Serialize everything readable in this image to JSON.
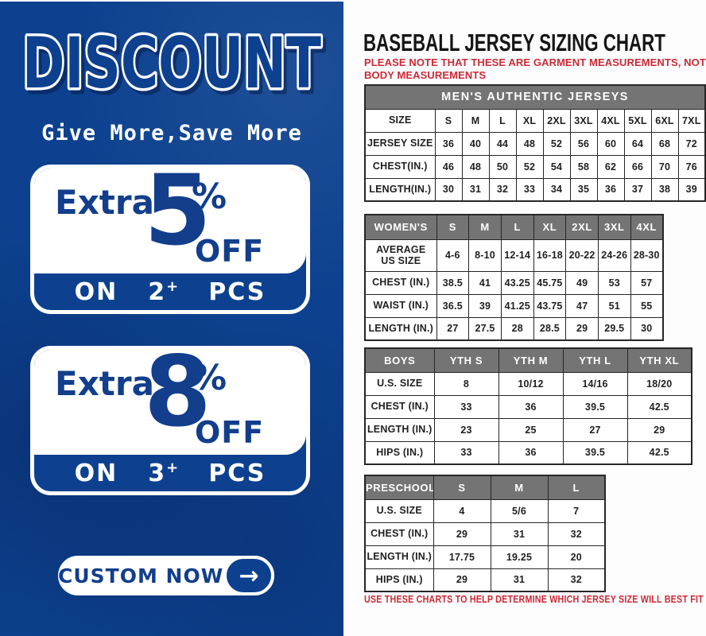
{
  "colors": {
    "panel_blue": "#0d418f",
    "navy_text": "#123e8c",
    "brand_red": "#cc2936",
    "header_gray": "#747474"
  },
  "left_panel": {
    "title": "DISCOUNT",
    "subtitle": "Give More,Save More",
    "offers": [
      {
        "prefix": "Extra",
        "value": "5",
        "percent": "%",
        "off": "OFF",
        "on": "ON",
        "qty": "2",
        "plus": "+",
        "pcs": "PCS"
      },
      {
        "prefix": "Extra",
        "value": "8",
        "percent": "%",
        "off": "OFF",
        "on": "ON",
        "qty": "3",
        "plus": "+",
        "pcs": "PCS"
      }
    ],
    "cta": {
      "label": "CUSTOM NOW",
      "arrow": "→"
    }
  },
  "sizing": {
    "title": "BASEBALL JERSEY SIZING CHART",
    "note_top": "PLEASE NOTE THAT THESE ARE GARMENT MEASUREMENTS, NOT BODY MEASUREMENTS",
    "note_bottom": "USE THESE CHARTS TO HELP DETERMINE WHICH JERSEY SIZE WILL BEST FIT YOU.",
    "tables": {
      "men": {
        "header_merged": "MEN'S AUTHENTIC JERSEYS",
        "rows": [
          [
            "SIZE",
            "S",
            "M",
            "L",
            "XL",
            "2XL",
            "3XL",
            "4XL",
            "5XL",
            "6XL",
            "7XL"
          ],
          [
            "JERSEY SIZE",
            "36",
            "40",
            "44",
            "48",
            "52",
            "56",
            "60",
            "64",
            "68",
            "72"
          ],
          [
            "CHEST(IN.)",
            "46",
            "48",
            "50",
            "52",
            "54",
            "58",
            "62",
            "66",
            "70",
            "76"
          ],
          [
            "LENGTH(IN.)",
            "30",
            "31",
            "32",
            "33",
            "34",
            "35",
            "36",
            "37",
            "38",
            "39"
          ]
        ]
      },
      "women": {
        "header": [
          "WOMEN'S",
          "S",
          "M",
          "L",
          "XL",
          "2XL",
          "3XL",
          "4XL"
        ],
        "rows": [
          [
            "AVERAGE\nUS SIZE",
            "4-6",
            "8-10",
            "12-14",
            "16-18",
            "20-22",
            "24-26",
            "28-30"
          ],
          [
            "CHEST (IN.)",
            "38.5",
            "41",
            "43.25",
            "45.75",
            "49",
            "53",
            "57"
          ],
          [
            "WAIST (IN.)",
            "36.5",
            "39",
            "41.25",
            "43.75",
            "47",
            "51",
            "55"
          ],
          [
            "LENGTH (IN.)",
            "27",
            "27.5",
            "28",
            "28.5",
            "29",
            "29.5",
            "30"
          ]
        ]
      },
      "boys": {
        "header": [
          "BOYS",
          "YTH S",
          "YTH M",
          "YTH L",
          "YTH XL"
        ],
        "rows": [
          [
            "U.S. SIZE",
            "8",
            "10/12",
            "14/16",
            "18/20"
          ],
          [
            "CHEST (IN.)",
            "33",
            "36",
            "39.5",
            "42.5"
          ],
          [
            "LENGTH (IN.)",
            "23",
            "25",
            "27",
            "29"
          ],
          [
            "HIPS (IN.)",
            "33",
            "36",
            "39.5",
            "42.5"
          ]
        ]
      },
      "preschool": {
        "header": [
          "PRESCHOOL",
          "S",
          "M",
          "L"
        ],
        "rows": [
          [
            "U.S. SIZE",
            "4",
            "5/6",
            "7"
          ],
          [
            "CHEST (IN.)",
            "29",
            "31",
            "32"
          ],
          [
            "LENGTH (IN.)",
            "17.75",
            "19.25",
            "20"
          ],
          [
            "HIPS (IN.)",
            "29",
            "31",
            "32"
          ]
        ]
      }
    }
  }
}
